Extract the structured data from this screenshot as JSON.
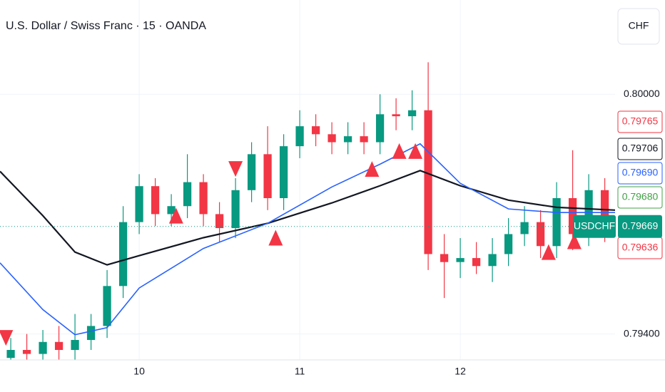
{
  "chart_data": {
    "type": "candlestick",
    "title": "U.S. Dollar / Swiss Franc · 15 · OANDA",
    "currency": "CHF",
    "xlim": [
      9.133,
      12.964
    ],
    "ylim": [
      0.79335,
      0.80236
    ],
    "xticks": [
      10,
      11,
      12
    ],
    "yticks": [
      {
        "value": 0.8,
        "label": "0.80000"
      },
      {
        "value": 0.794,
        "label": "0.79400"
      }
    ],
    "grid": true,
    "up_color": "#089981",
    "down_color": "#f23645",
    "x": [
      9.2,
      9.3,
      9.4,
      9.5,
      9.6,
      9.7,
      9.8,
      9.9,
      10.0,
      10.1,
      10.2,
      10.3,
      10.4,
      10.5,
      10.6,
      10.7,
      10.8,
      10.9,
      11.0,
      11.1,
      11.2,
      11.3,
      11.4,
      11.5,
      11.6,
      11.7,
      11.8,
      11.9,
      12.0,
      12.1,
      12.2,
      12.3,
      12.4,
      12.5,
      12.6,
      12.7,
      12.8,
      12.9
    ],
    "open": [
      0.7934,
      0.7936,
      0.7935,
      0.7938,
      0.7936,
      0.79385,
      0.7942,
      0.7952,
      0.7968,
      0.7977,
      0.797,
      0.7972,
      0.7978,
      0.797,
      0.79665,
      0.7976,
      0.7985,
      0.7974,
      0.7987,
      0.7992,
      0.799,
      0.7988,
      0.79895,
      0.7988,
      0.7995,
      0.79945,
      0.7996,
      0.796,
      0.7958,
      0.7959,
      0.7957,
      0.796,
      0.7965,
      0.7968,
      0.7962,
      0.7974,
      0.7965,
      0.7976
    ],
    "high": [
      0.7939,
      0.794,
      0.7941,
      0.7942,
      0.7945,
      0.7945,
      0.7956,
      0.7972,
      0.798,
      0.7979,
      0.7975,
      0.7985,
      0.798,
      0.7973,
      0.7979,
      0.7988,
      0.7992,
      0.799,
      0.7996,
      0.7995,
      0.7993,
      0.7993,
      0.7993,
      0.8,
      0.7999,
      0.8001,
      0.8008,
      0.7965,
      0.7964,
      0.7963,
      0.7964,
      0.7969,
      0.7972,
      0.7971,
      0.7978,
      0.7986,
      0.798,
      0.7979
    ],
    "low": [
      0.7931,
      0.7932,
      0.7932,
      0.7933,
      0.7933,
      0.7936,
      0.7939,
      0.7949,
      0.7965,
      0.7967,
      0.7967,
      0.7969,
      0.7967,
      0.7963,
      0.7964,
      0.7973,
      0.7971,
      0.7971,
      0.7984,
      0.7987,
      0.7985,
      0.7985,
      0.7985,
      0.7985,
      0.7991,
      0.7991,
      0.7956,
      0.7949,
      0.7954,
      0.7955,
      0.7953,
      0.7957,
      0.7962,
      0.7959,
      0.7959,
      0.7961,
      0.7962,
      0.7963
    ],
    "close": [
      0.7936,
      0.7935,
      0.7938,
      0.7936,
      0.79385,
      0.7942,
      0.7952,
      0.7968,
      0.7977,
      0.797,
      0.7972,
      0.7978,
      0.797,
      0.79665,
      0.7976,
      0.7985,
      0.7974,
      0.7987,
      0.7992,
      0.799,
      0.7988,
      0.79895,
      0.7988,
      0.7995,
      0.79945,
      0.7996,
      0.796,
      0.7958,
      0.7959,
      0.7957,
      0.796,
      0.7965,
      0.7968,
      0.7962,
      0.7974,
      0.7965,
      0.7976,
      0.79669
    ],
    "lines": [
      {
        "color": "#131722",
        "x": [
          9.133,
          9.4,
          9.6,
          9.8,
          10.0,
          10.4,
          10.8,
          11.2,
          11.5,
          11.75,
          12.0,
          12.3,
          12.6,
          12.964
        ],
        "values": [
          0.79807,
          0.79696,
          0.79605,
          0.79573,
          0.79596,
          0.79641,
          0.79677,
          0.79728,
          0.79771,
          0.79809,
          0.79771,
          0.79735,
          0.79717,
          0.7971
        ]
      },
      {
        "color": "#2962ff",
        "x": [
          9.133,
          9.4,
          9.6,
          9.8,
          10.0,
          10.4,
          10.8,
          11.2,
          11.5,
          11.75,
          12.0,
          12.3,
          12.6,
          12.964
        ],
        "values": [
          0.79578,
          0.79461,
          0.79398,
          0.79416,
          0.79515,
          0.79614,
          0.79677,
          0.79768,
          0.79825,
          0.79876,
          0.79777,
          0.79713,
          0.79704,
          0.79704
        ]
      }
    ],
    "signals_up": {
      "color": "#f23645",
      "x": [
        10.23,
        10.85,
        11.45,
        11.62,
        11.72,
        12.55,
        12.71
      ],
      "values": [
        0.79696,
        0.79641,
        0.79813,
        0.79858,
        0.79858,
        0.79605,
        0.79632
      ]
    },
    "signals_down": {
      "color": "#f23645",
      "x": [
        9.17,
        10.6
      ],
      "values": [
        0.7939,
        0.79813
      ]
    },
    "price_labels": [
      {
        "value": 0.79765,
        "label": "0.79765",
        "color": "#f23645"
      },
      {
        "value": 0.79706,
        "label": "0.79706",
        "color": "#131722"
      },
      {
        "value": 0.7969,
        "label": "0.79690",
        "color": "#2962ff"
      },
      {
        "value": 0.7968,
        "label": "0.79680",
        "color": "#43a047"
      },
      {
        "value": 0.79636,
        "label": "0.79636",
        "color": "#f23645"
      }
    ],
    "last_price": {
      "symbol": "USDCHF",
      "value": 0.79669,
      "color": "#089981"
    }
  }
}
